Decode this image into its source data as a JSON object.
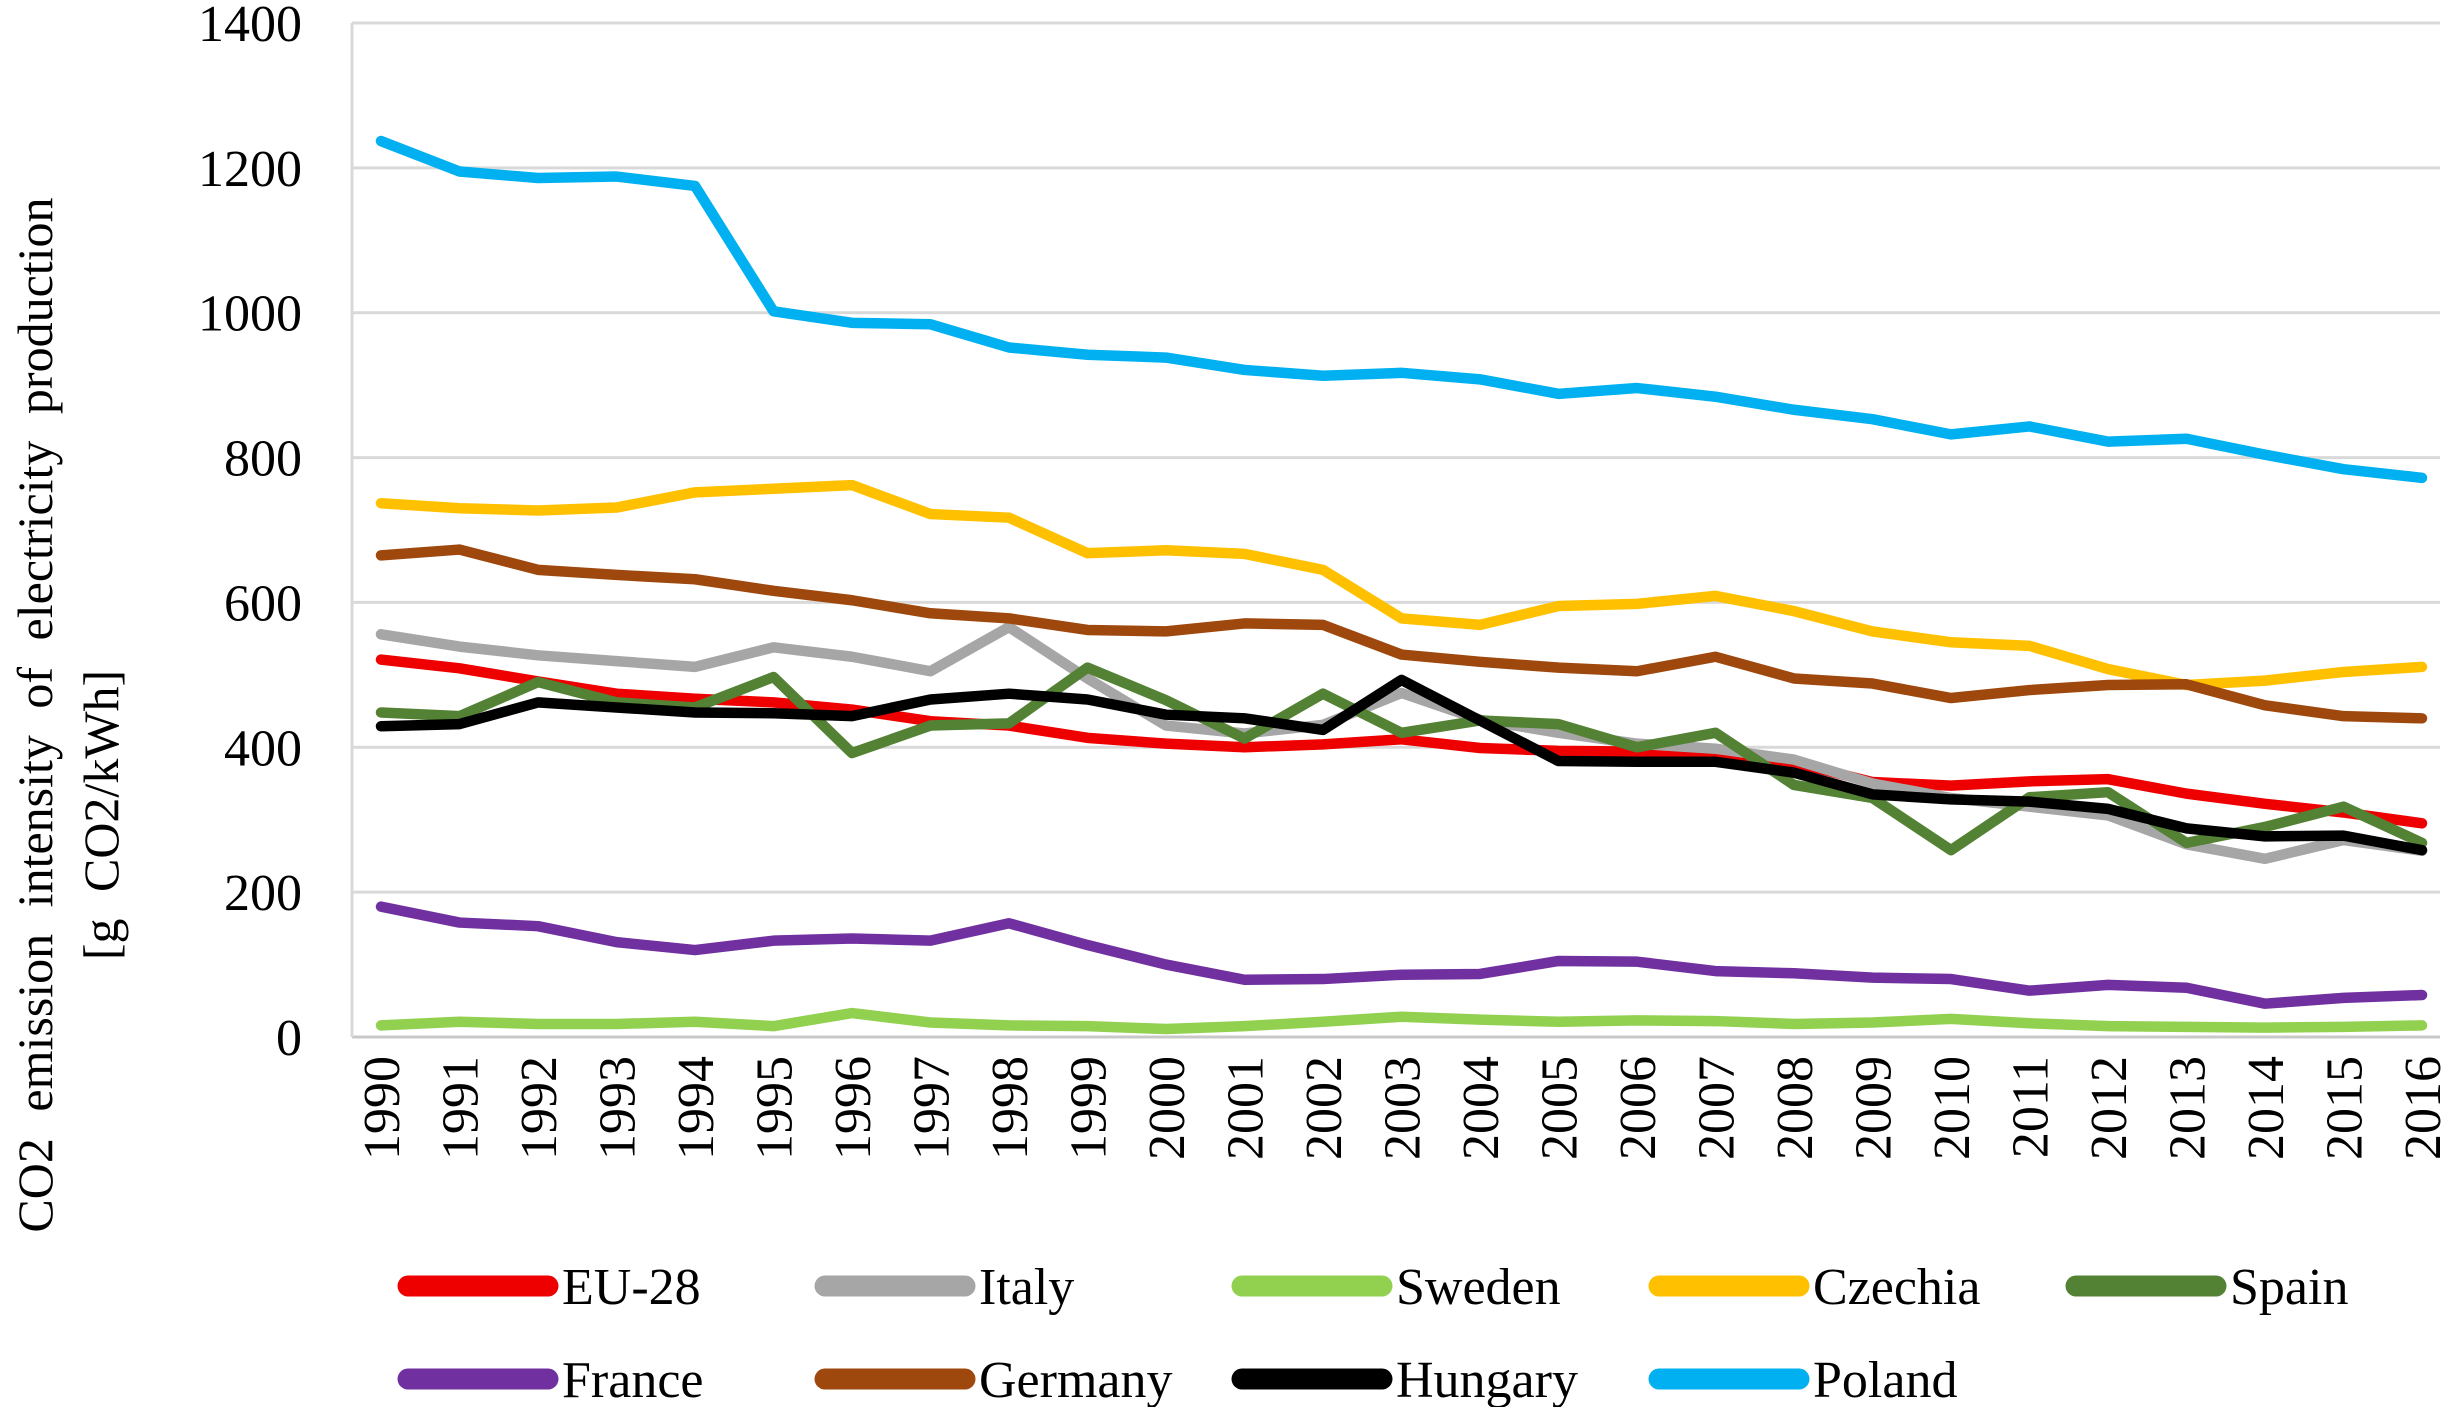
{
  "chart_data": {
    "type": "line",
    "title": "",
    "ylabel_line1": "CO2 emission  intensity  of electricity  production",
    "ylabel_line2": "[g CO2/kWh]",
    "xlabel": "",
    "x": [
      "1990",
      "1991",
      "1992",
      "1993",
      "1994",
      "1995",
      "1996",
      "1997",
      "1998",
      "1999",
      "2000",
      "2001",
      "2002",
      "2003",
      "2004",
      "2005",
      "2006",
      "2007",
      "2008",
      "2009",
      "2010",
      "2011",
      "2012",
      "2013",
      "2014",
      "2015",
      "2016"
    ],
    "ylim": [
      0,
      1400
    ],
    "yticks": [
      0,
      200,
      400,
      600,
      800,
      1000,
      1200,
      1400
    ],
    "grid": true,
    "legend_position": "bottom",
    "colors": {
      "gridline": "#D9D9D9",
      "axis_line": "#C8C8C8",
      "text": "#000000",
      "background": "#FFFFFF"
    },
    "series": [
      {
        "name": "EU-28",
        "color": "#EE0000",
        "values": [
          521,
          509,
          491,
          474,
          467,
          462,
          452,
          436,
          430,
          413,
          405,
          400,
          404,
          411,
          399,
          395,
          394,
          392,
          379,
          352,
          347,
          353,
          356,
          336,
          322,
          310,
          295
        ]
      },
      {
        "name": "Italy",
        "color": "#A6A6A6",
        "values": [
          556,
          539,
          527,
          519,
          511,
          538,
          525,
          505,
          566,
          495,
          430,
          419,
          431,
          475,
          438,
          420,
          405,
          398,
          383,
          350,
          330,
          318,
          306,
          266,
          246,
          272,
          257
        ]
      },
      {
        "name": "Sweden",
        "color": "#92D050",
        "values": [
          16,
          21,
          18,
          18,
          21,
          15,
          33,
          20,
          16,
          15,
          11,
          15,
          21,
          28,
          24,
          21,
          23,
          22,
          18,
          20,
          25,
          19,
          15,
          14,
          13,
          14,
          16
        ]
      },
      {
        "name": "Czechia",
        "color": "#FFC000",
        "values": [
          737,
          730,
          727,
          731,
          752,
          757,
          762,
          722,
          717,
          668,
          672,
          667,
          645,
          578,
          569,
          595,
          598,
          609,
          588,
          560,
          545,
          540,
          508,
          486,
          492,
          504,
          511
        ]
      },
      {
        "name": "Spain",
        "color": "#548235",
        "values": [
          448,
          443,
          490,
          462,
          455,
          497,
          392,
          430,
          433,
          510,
          465,
          412,
          474,
          420,
          437,
          432,
          400,
          420,
          348,
          330,
          258,
          331,
          338,
          268,
          290,
          318,
          268
        ]
      },
      {
        "name": "France",
        "color": "#7030A0",
        "values": [
          180,
          158,
          153,
          131,
          120,
          133,
          136,
          133,
          157,
          127,
          100,
          79,
          80,
          86,
          87,
          105,
          104,
          91,
          88,
          82,
          80,
          64,
          72,
          68,
          46,
          54,
          58
        ]
      },
      {
        "name": "Germany",
        "color": "#9E480E",
        "values": [
          665,
          673,
          645,
          638,
          632,
          616,
          603,
          585,
          578,
          562,
          560,
          571,
          569,
          528,
          518,
          510,
          505,
          525,
          495,
          488,
          468,
          479,
          486,
          487,
          458,
          443,
          440
        ]
      },
      {
        "name": "Hungary",
        "color": "#000000",
        "values": [
          429,
          432,
          462,
          455,
          448,
          447,
          443,
          466,
          474,
          466,
          445,
          440,
          424,
          493,
          437,
          381,
          380,
          380,
          365,
          335,
          328,
          325,
          315,
          288,
          277,
          278,
          258
        ]
      },
      {
        "name": "Poland",
        "color": "#00B0F0",
        "values": [
          1237,
          1195,
          1186,
          1188,
          1175,
          1002,
          986,
          984,
          952,
          942,
          938,
          921,
          913,
          917,
          908,
          888,
          896,
          884,
          866,
          853,
          832,
          843,
          822,
          826,
          804,
          784,
          772
        ]
      }
    ],
    "legend_rows": [
      [
        "EU-28",
        "Italy",
        "Sweden",
        "Czechia",
        "Spain"
      ],
      [
        "France",
        "Germany",
        "Hungary",
        "Poland"
      ]
    ]
  }
}
